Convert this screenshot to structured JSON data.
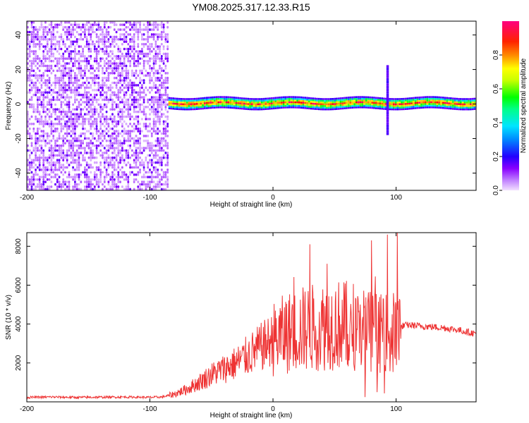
{
  "figure_title": "YM08.2025.317.12.33.R15",
  "chart_data": [
    {
      "type": "heatmap",
      "title": "YM08.2025.317.12.33.R15",
      "xlabel": "Height of straight line (km)",
      "ylabel": "Frequency (Hz)",
      "xlim": [
        -200,
        165
      ],
      "ylim": [
        -50,
        48
      ],
      "x_ticks": [
        -200,
        -100,
        0,
        100
      ],
      "y_ticks": [
        -40,
        -20,
        0,
        20,
        40
      ],
      "colorbar": {
        "label": "Normalized spectral amplitude",
        "range": [
          0.0,
          1.0
        ],
        "ticks": [
          0.0,
          0.2,
          0.4,
          0.6,
          0.8
        ],
        "tick_labels": [
          "0.0",
          "0.2",
          "0.4",
          "0.6",
          "0.8"
        ],
        "colors": [
          "#f2e0ff",
          "#8800ff",
          "#0000ff",
          "#00e5ff",
          "#00ff00",
          "#ffff00",
          "#ff8800",
          "#ff0000",
          "#ff0080"
        ]
      },
      "features": [
        {
          "name": "broadband noise",
          "x_range": [
            -200,
            -85
          ],
          "freq_range": [
            -50,
            48
          ],
          "amplitude": 0.1
        },
        {
          "name": "signal band",
          "x_range": [
            -85,
            165
          ],
          "center_freq": 0,
          "half_width_hz": 3,
          "amplitude": 0.9
        },
        {
          "name": "spike",
          "x_center": 93,
          "freq_range": [
            -18,
            22
          ],
          "amplitude": 0.15
        }
      ]
    },
    {
      "type": "line",
      "xlabel": "Height of straight line (km)",
      "ylabel": "SNR (10 * v/v)",
      "xlim": [
        -200,
        165
      ],
      "ylim": [
        0,
        8700
      ],
      "x_ticks": [
        -200,
        -100,
        0,
        100
      ],
      "y_ticks": [
        2000,
        4000,
        6000,
        8000
      ],
      "color": "#ee3333",
      "series": [
        {
          "name": "SNR",
          "x": [
            -200,
            -180,
            -160,
            -140,
            -120,
            -100,
            -90,
            -80,
            -70,
            -60,
            -50,
            -40,
            -30,
            -20,
            -10,
            0,
            10,
            20,
            30,
            40,
            50,
            60,
            70,
            80,
            90,
            100,
            105,
            110,
            120,
            130,
            140,
            150,
            165
          ],
          "values": [
            230,
            250,
            230,
            240,
            250,
            230,
            250,
            400,
            650,
            1000,
            1400,
            1700,
            2000,
            2400,
            2800,
            3200,
            3500,
            3700,
            3800,
            3900,
            4000,
            3900,
            3900,
            3600,
            3600,
            3500,
            3900,
            3950,
            3900,
            3850,
            3800,
            3700,
            3500
          ]
        }
      ],
      "peaks": [
        {
          "x": 30,
          "y": 8100
        },
        {
          "x": 44,
          "y": 7100
        },
        {
          "x": 80,
          "y": 8300
        },
        {
          "x": 93,
          "y": 8600
        },
        {
          "x": 101,
          "y": 8700
        }
      ]
    }
  ]
}
